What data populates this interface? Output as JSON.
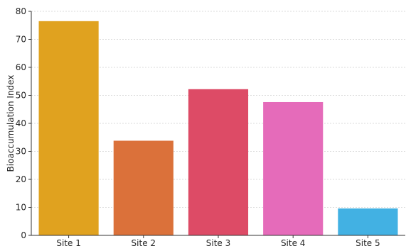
{
  "chart_data": {
    "type": "bar",
    "title": "",
    "xlabel": "",
    "ylabel": "Bioaccumulation Index",
    "categories": [
      "Site 1",
      "Site 2",
      "Site 3",
      "Site 4",
      "Site 5"
    ],
    "values": [
      76.5,
      33.8,
      52.2,
      47.6,
      9.6
    ],
    "colors": [
      "#E0A21F",
      "#DB713A",
      "#DD4B66",
      "#E56BBA",
      "#42B1E3"
    ],
    "ylim": [
      0,
      80
    ],
    "yticks": [
      0,
      10,
      20,
      30,
      40,
      50,
      60,
      70,
      80
    ],
    "grid": true
  }
}
